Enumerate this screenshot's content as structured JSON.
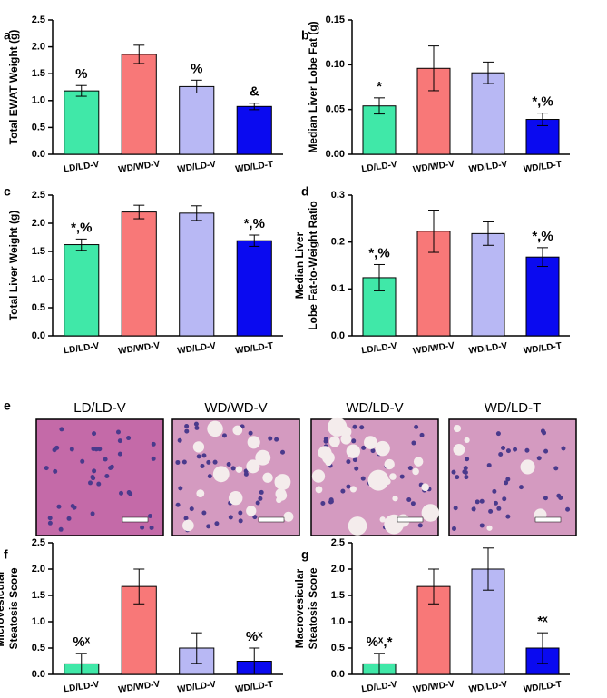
{
  "chart_data": [
    {
      "type": "bar",
      "panel": "a",
      "ylabel": [
        "Total EWAT Weight (g)"
      ],
      "categories": [
        "LD/LD-V",
        "WD/WD-V",
        "WD/LD-V",
        "WD/LD-T"
      ],
      "values": [
        1.18,
        1.86,
        1.26,
        0.89
      ],
      "errors": [
        0.1,
        0.17,
        0.12,
        0.06
      ],
      "annotations": [
        "%",
        null,
        "%",
        "&"
      ],
      "colors": [
        "#40e8a8",
        "#f87878",
        "#b8b8f4",
        "#0a0af0"
      ],
      "ylim": [
        0,
        2.5
      ],
      "yticks": [
        {
          "value": 0,
          "label": "0.0"
        },
        0.5,
        {
          "value": 1,
          "label": "1.0"
        },
        1.5,
        {
          "value": 2,
          "label": "2.0"
        },
        2.5
      ]
    },
    {
      "type": "bar",
      "panel": "b",
      "ylabel": [
        "Median Liver Lobe Fat (g)"
      ],
      "categories": [
        "LD/LD-V",
        "WD/WD-V",
        "WD/LD-V",
        "WD/LD-T"
      ],
      "values": [
        0.054,
        0.096,
        0.091,
        0.039
      ],
      "errors": [
        0.009,
        0.025,
        0.012,
        0.007
      ],
      "annotations": [
        "*",
        null,
        null,
        "*,%"
      ],
      "colors": [
        "#40e8a8",
        "#f87878",
        "#b8b8f4",
        "#0a0af0"
      ],
      "ylim": [
        0,
        0.15
      ],
      "yticks": [
        {
          "value": 0,
          "label": "0.00"
        },
        {
          "value": 0.05,
          "label": "0.05"
        },
        {
          "value": 0.1,
          "label": "0.10"
        },
        {
          "value": 0.15,
          "label": "0.15"
        }
      ]
    },
    {
      "type": "bar",
      "panel": "c",
      "ylabel": [
        "Total Liver Weight (g)"
      ],
      "categories": [
        "LD/LD-V",
        "WD/WD-V",
        "WD/LD-V",
        "WD/LD-T"
      ],
      "values": [
        1.62,
        2.2,
        2.18,
        1.69
      ],
      "errors": [
        0.1,
        0.12,
        0.13,
        0.1
      ],
      "annotations": [
        "*,%",
        null,
        null,
        "*,%"
      ],
      "colors": [
        "#40e8a8",
        "#f87878",
        "#b8b8f4",
        "#0a0af0"
      ],
      "ylim": [
        0,
        2.5
      ],
      "yticks": [
        {
          "value": 0,
          "label": "0.0"
        },
        0.5,
        {
          "value": 1,
          "label": "1.0"
        },
        1.5,
        {
          "value": 2,
          "label": "2.0"
        },
        2.5
      ]
    },
    {
      "type": "bar",
      "panel": "d",
      "ylabel": [
        "Median Liver",
        "Lobe Fat-to-Weight Ratio"
      ],
      "categories": [
        "LD/LD-V",
        "WD/WD-V",
        "WD/LD-V",
        "WD/LD-T"
      ],
      "values": [
        0.124,
        0.223,
        0.218,
        0.168
      ],
      "errors": [
        0.028,
        0.045,
        0.025,
        0.02
      ],
      "annotations": [
        "*,%",
        null,
        null,
        "*,%"
      ],
      "colors": [
        "#40e8a8",
        "#f87878",
        "#b8b8f4",
        "#0a0af0"
      ],
      "ylim": [
        0,
        0.3
      ],
      "yticks": [
        {
          "value": 0,
          "label": "0.0"
        },
        0.1,
        0.2,
        0.3
      ]
    },
    {
      "type": "bar",
      "panel": "f",
      "ylabel": [
        "Microvesicular",
        "Steatosis Score"
      ],
      "categories": [
        "LD/LD-V",
        "WD/WD-V",
        "WD/LD-V",
        "WD/LD-T"
      ],
      "values": [
        0.2,
        1.67,
        0.5,
        0.25
      ],
      "errors": [
        0.2,
        0.33,
        0.29,
        0.25
      ],
      "annotations": [
        "%ˣ",
        null,
        null,
        "%ˣ"
      ],
      "colors": [
        "#40e8a8",
        "#f87878",
        "#b8b8f4",
        "#0a0af0"
      ],
      "ylim": [
        0,
        2.5
      ],
      "yticks": [
        {
          "value": 0,
          "label": "0.0"
        },
        0.5,
        {
          "value": 1,
          "label": "1.0"
        },
        1.5,
        {
          "value": 2,
          "label": "2.0"
        },
        2.5
      ]
    },
    {
      "type": "bar",
      "panel": "g",
      "ylabel": [
        "Macrovesicular",
        "Steatosis Score"
      ],
      "categories": [
        "LD/LD-V",
        "WD/WD-V",
        "WD/LD-V",
        "WD/LD-T"
      ],
      "values": [
        0.2,
        1.67,
        2.0,
        0.5
      ],
      "errors": [
        0.2,
        0.33,
        0.4,
        0.29
      ],
      "annotations": [
        "%ˣ,*",
        null,
        null,
        "*ˣ"
      ],
      "colors": [
        "#40e8a8",
        "#f87878",
        "#b8b8f4",
        "#0a0af0"
      ],
      "ylim": [
        0,
        2.5
      ],
      "yticks": [
        {
          "value": 0,
          "label": "0.0"
        },
        0.5,
        {
          "value": 1,
          "label": "1.0"
        },
        1.5,
        {
          "value": 2,
          "label": "2.0"
        },
        2.5
      ]
    }
  ],
  "histology": {
    "panel": "e",
    "titles": [
      "LD/LD-V",
      "WD/WD-V",
      "WD/LD-V",
      "WD/LD-T"
    ]
  }
}
